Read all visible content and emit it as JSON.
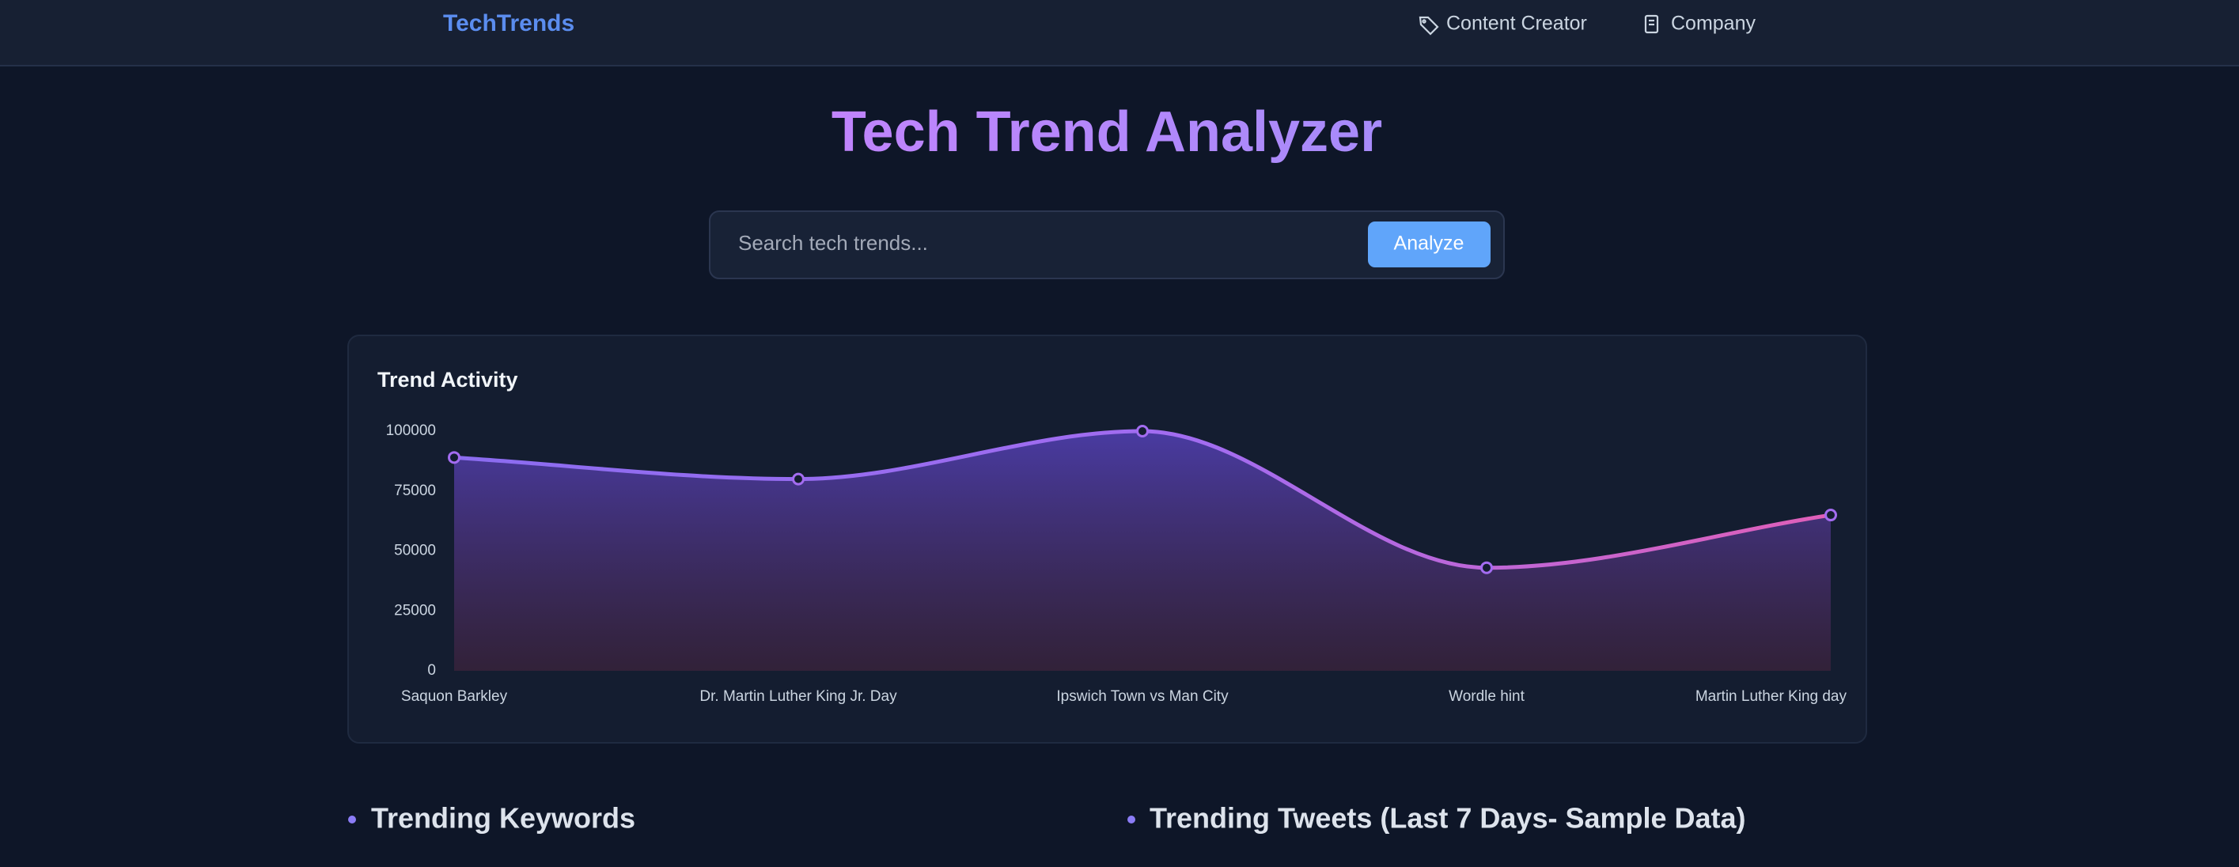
{
  "nav": {
    "brand": "TechTrends",
    "links": [
      "Content Creator",
      "Company"
    ]
  },
  "header": {
    "title": "Tech Trend Analyzer"
  },
  "search": {
    "placeholder": "Search tech trends...",
    "button": "Analyze"
  },
  "chart_data": {
    "type": "line",
    "title": "Trend Activity",
    "categories": [
      "Saquon Barkley",
      "Dr. Martin Luther King Jr. Day",
      "Ipswich Town vs Man City",
      "Wordle hint",
      "Martin Luther King day"
    ],
    "values": [
      89000,
      80000,
      100000,
      43000,
      65000
    ],
    "color": "#a36cf0",
    "ylim": [
      0,
      100000
    ],
    "yticks": [
      0,
      25000,
      50000,
      75000,
      100000
    ],
    "grid": false
  },
  "sections": [
    "Trending Keywords",
    "Trending Tweets (Last 7 Days- Sample Data)"
  ]
}
